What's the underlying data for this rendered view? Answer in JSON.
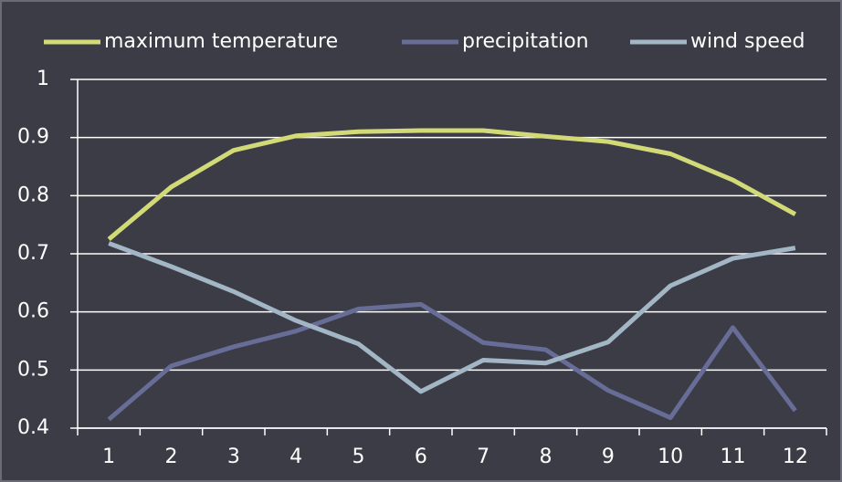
{
  "chart_data": {
    "type": "line",
    "categories": [
      "1",
      "2",
      "3",
      "4",
      "5",
      "6",
      "7",
      "8",
      "9",
      "10",
      "11",
      "12"
    ],
    "series": [
      {
        "name": "maximum temperature",
        "color": "#d2da78",
        "values": [
          0.725,
          0.815,
          0.878,
          0.903,
          0.91,
          0.912,
          0.912,
          0.902,
          0.893,
          0.872,
          0.827,
          0.768
        ]
      },
      {
        "name": "precipitation",
        "color": "#686d98",
        "values": [
          0.415,
          0.507,
          0.54,
          0.567,
          0.605,
          0.613,
          0.547,
          0.535,
          0.465,
          0.418,
          0.573,
          0.43
        ]
      },
      {
        "name": "wind speed",
        "color": "#a2b6c6",
        "values": [
          0.718,
          0.678,
          0.635,
          0.585,
          0.545,
          0.463,
          0.517,
          0.512,
          0.548,
          0.645,
          0.692,
          0.71
        ]
      }
    ],
    "ylim": [
      0.4,
      1
    ],
    "yticks": [
      0.4,
      0.5,
      0.6,
      0.7,
      0.8,
      0.9,
      1
    ],
    "grid": true,
    "legend": "top"
  }
}
